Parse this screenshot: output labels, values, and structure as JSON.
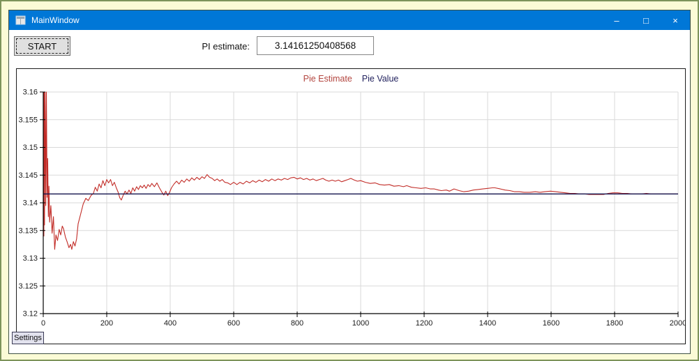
{
  "window": {
    "title": "MainWindow",
    "controls": [
      {
        "name": "minimize",
        "glyph": "–"
      },
      {
        "name": "maximize",
        "glyph": "□"
      },
      {
        "name": "close",
        "glyph": "×"
      }
    ]
  },
  "toolbar": {
    "start_label": "START",
    "pi_label": "PI estimate:",
    "pi_value": "3.14161250408568"
  },
  "settings_label": "Settings",
  "colors": {
    "titlebar": "#0077d7",
    "estimate_line": "#c22d28",
    "value_line": "#14144e",
    "legend_estimate": "#b3453f",
    "legend_value": "#23235f",
    "gridline": "#d9d9d9",
    "axis": "#000000",
    "page_background": "#fbfbd6"
  },
  "chart_data": {
    "type": "line",
    "title": "",
    "xlabel": "",
    "ylabel": "",
    "grid": true,
    "legend_position": "top-center",
    "xlim": [
      0,
      2000
    ],
    "ylim": [
      3.12,
      3.16
    ],
    "x_ticks": [
      0,
      200,
      400,
      600,
      800,
      1000,
      1200,
      1400,
      1600,
      1800,
      2000
    ],
    "y_ticks": [
      {
        "v": 3.16,
        "label": "3.16"
      },
      {
        "v": 3.155,
        "label": "3.155"
      },
      {
        "v": 3.15,
        "label": "3.15"
      },
      {
        "v": 3.145,
        "label": "3.145"
      },
      {
        "v": 3.14,
        "label": "3.14"
      },
      {
        "v": 3.135,
        "label": "3.135"
      },
      {
        "v": 3.13,
        "label": "3.13"
      },
      {
        "v": 3.125,
        "label": "3.125"
      },
      {
        "v": 3.12,
        "label": "3.12"
      }
    ],
    "legend": [
      {
        "name": "Pie Estimate",
        "color": "#b3453f"
      },
      {
        "name": "Pie Value",
        "color": "#23235f"
      }
    ],
    "series": [
      {
        "name": "Pie Estimate",
        "color": "#c22d28",
        "points": [
          [
            1,
            3.16
          ],
          [
            2,
            3.134
          ],
          [
            3,
            3.16
          ],
          [
            4,
            3.136
          ],
          [
            6,
            3.16
          ],
          [
            8,
            3.1395
          ],
          [
            10,
            3.16
          ],
          [
            12,
            3.141
          ],
          [
            14,
            3.148
          ],
          [
            16,
            3.1375
          ],
          [
            18,
            3.143
          ],
          [
            20,
            3.1365
          ],
          [
            24,
            3.1395
          ],
          [
            28,
            3.1345
          ],
          [
            32,
            3.1375
          ],
          [
            36,
            3.1316
          ],
          [
            40,
            3.1342
          ],
          [
            45,
            3.1332
          ],
          [
            50,
            3.1352
          ],
          [
            55,
            3.1342
          ],
          [
            60,
            3.1358
          ],
          [
            64,
            3.1353
          ],
          [
            70,
            3.1338
          ],
          [
            75,
            3.133
          ],
          [
            81,
            3.1319
          ],
          [
            86,
            3.1325
          ],
          [
            90,
            3.1316
          ],
          [
            95,
            3.133
          ],
          [
            100,
            3.1322
          ],
          [
            105,
            3.1335
          ],
          [
            110,
            3.1362
          ],
          [
            118,
            3.138
          ],
          [
            126,
            3.1398
          ],
          [
            134,
            3.1408
          ],
          [
            142,
            3.1404
          ],
          [
            150,
            3.1413
          ],
          [
            158,
            3.1417
          ],
          [
            164,
            3.1428
          ],
          [
            170,
            3.1421
          ],
          [
            176,
            3.1434
          ],
          [
            182,
            3.1427
          ],
          [
            188,
            3.144
          ],
          [
            194,
            3.1431
          ],
          [
            200,
            3.1442
          ],
          [
            206,
            3.1436
          ],
          [
            212,
            3.1442
          ],
          [
            218,
            3.1431
          ],
          [
            224,
            3.1437
          ],
          [
            230,
            3.1427
          ],
          [
            236,
            3.1419
          ],
          [
            241,
            3.1409
          ],
          [
            246,
            3.1405
          ],
          [
            252,
            3.1414
          ],
          [
            258,
            3.1421
          ],
          [
            264,
            3.1416
          ],
          [
            270,
            3.1423
          ],
          [
            276,
            3.1417
          ],
          [
            282,
            3.1427
          ],
          [
            288,
            3.1421
          ],
          [
            294,
            3.1429
          ],
          [
            300,
            3.1424
          ],
          [
            306,
            3.1431
          ],
          [
            312,
            3.1427
          ],
          [
            318,
            3.1432
          ],
          [
            324,
            3.1426
          ],
          [
            330,
            3.1433
          ],
          [
            336,
            3.1429
          ],
          [
            342,
            3.1435
          ],
          [
            350,
            3.1429
          ],
          [
            358,
            3.1436
          ],
          [
            366,
            3.1427
          ],
          [
            374,
            3.1419
          ],
          [
            380,
            3.1414
          ],
          [
            386,
            3.1421
          ],
          [
            392,
            3.1413
          ],
          [
            398,
            3.1419
          ],
          [
            404,
            3.1427
          ],
          [
            412,
            3.1434
          ],
          [
            420,
            3.1439
          ],
          [
            428,
            3.1434
          ],
          [
            436,
            3.1441
          ],
          [
            444,
            3.1437
          ],
          [
            452,
            3.1443
          ],
          [
            460,
            3.1439
          ],
          [
            468,
            3.1445
          ],
          [
            476,
            3.1441
          ],
          [
            484,
            3.1446
          ],
          [
            492,
            3.1442
          ],
          [
            500,
            3.1447
          ],
          [
            508,
            3.1444
          ],
          [
            516,
            3.1451
          ],
          [
            524,
            3.1446
          ],
          [
            532,
            3.1444
          ],
          [
            540,
            3.144
          ],
          [
            548,
            3.1443
          ],
          [
            556,
            3.1439
          ],
          [
            564,
            3.1442
          ],
          [
            572,
            3.1437
          ],
          [
            581,
            3.1436
          ],
          [
            590,
            3.1433
          ],
          [
            600,
            3.1437
          ],
          [
            610,
            3.1433
          ],
          [
            620,
            3.1437
          ],
          [
            630,
            3.1434
          ],
          [
            640,
            3.1439
          ],
          [
            650,
            3.1436
          ],
          [
            660,
            3.144
          ],
          [
            670,
            3.1437
          ],
          [
            680,
            3.1441
          ],
          [
            690,
            3.1438
          ],
          [
            700,
            3.1442
          ],
          [
            710,
            3.1439
          ],
          [
            720,
            3.1443
          ],
          [
            730,
            3.144
          ],
          [
            740,
            3.1443
          ],
          [
            750,
            3.1441
          ],
          [
            760,
            3.1444
          ],
          [
            770,
            3.1442
          ],
          [
            780,
            3.1445
          ],
          [
            790,
            3.1446
          ],
          [
            800,
            3.1443
          ],
          [
            810,
            3.1445
          ],
          [
            820,
            3.1442
          ],
          [
            830,
            3.1444
          ],
          [
            840,
            3.1441
          ],
          [
            850,
            3.1443
          ],
          [
            860,
            3.144
          ],
          [
            870,
            3.1442
          ],
          [
            881,
            3.1444
          ],
          [
            890,
            3.1441
          ],
          [
            900,
            3.1439
          ],
          [
            910,
            3.1441
          ],
          [
            920,
            3.1439
          ],
          [
            930,
            3.1441
          ],
          [
            940,
            3.1438
          ],
          [
            950,
            3.144
          ],
          [
            960,
            3.1442
          ],
          [
            969,
            3.1444
          ],
          [
            980,
            3.1441
          ],
          [
            990,
            3.1439
          ],
          [
            1000,
            3.144
          ],
          [
            1015,
            3.1437
          ],
          [
            1030,
            3.1435
          ],
          [
            1045,
            3.1436
          ],
          [
            1060,
            3.1433
          ],
          [
            1075,
            3.1432
          ],
          [
            1090,
            3.1433
          ],
          [
            1105,
            3.143
          ],
          [
            1120,
            3.1431
          ],
          [
            1135,
            3.1429
          ],
          [
            1145,
            3.1431
          ],
          [
            1160,
            3.1428
          ],
          [
            1175,
            3.1427
          ],
          [
            1190,
            3.1426
          ],
          [
            1205,
            3.1427
          ],
          [
            1220,
            3.1425
          ],
          [
            1232,
            3.1425
          ],
          [
            1245,
            3.1423
          ],
          [
            1254,
            3.1422
          ],
          [
            1270,
            3.1423
          ],
          [
            1280,
            3.1421
          ],
          [
            1294,
            3.1425
          ],
          [
            1310,
            3.1422
          ],
          [
            1325,
            3.142
          ],
          [
            1340,
            3.1421
          ],
          [
            1355,
            3.1423
          ],
          [
            1370,
            3.1424
          ],
          [
            1385,
            3.1425
          ],
          [
            1400,
            3.1426
          ],
          [
            1415,
            3.1427
          ],
          [
            1423,
            3.1427
          ],
          [
            1440,
            3.1425
          ],
          [
            1455,
            3.1423
          ],
          [
            1470,
            3.1422
          ],
          [
            1485,
            3.142
          ],
          [
            1500,
            3.142
          ],
          [
            1515,
            3.1419
          ],
          [
            1533,
            3.1419
          ],
          [
            1550,
            3.142
          ],
          [
            1565,
            3.1419
          ],
          [
            1580,
            3.142
          ],
          [
            1598,
            3.1421
          ],
          [
            1615,
            3.142
          ],
          [
            1630,
            3.1419
          ],
          [
            1645,
            3.1418
          ],
          [
            1660,
            3.1417
          ],
          [
            1675,
            3.1417
          ],
          [
            1690,
            3.1416
          ],
          [
            1705,
            3.1416
          ],
          [
            1720,
            3.1415
          ],
          [
            1735,
            3.1415
          ],
          [
            1750,
            3.1415
          ],
          [
            1765,
            3.1415
          ],
          [
            1780,
            3.1417
          ],
          [
            1795,
            3.1418
          ],
          [
            1809,
            3.1418
          ],
          [
            1825,
            3.1417
          ],
          [
            1840,
            3.1417
          ],
          [
            1855,
            3.1416
          ],
          [
            1870,
            3.1416
          ],
          [
            1885,
            3.1416
          ],
          [
            1900,
            3.1417
          ],
          [
            1915,
            3.1416
          ],
          [
            1930,
            3.1416
          ],
          [
            1945,
            3.1416
          ],
          [
            1960,
            3.1416
          ],
          [
            1975,
            3.1416
          ],
          [
            1990,
            3.1416
          ],
          [
            2000,
            3.1416
          ]
        ]
      },
      {
        "name": "Pie Value",
        "color": "#14144e",
        "constant": 3.14159265
      }
    ]
  }
}
